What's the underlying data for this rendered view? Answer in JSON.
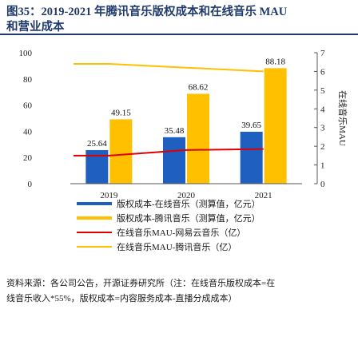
{
  "figure": {
    "title_line1": "图35：2019-2021 年腾讯音乐版权成本和在线音乐 MAU",
    "title_line2": "和营业成本"
  },
  "chart_data": {
    "type": "bar",
    "categories": [
      "2019",
      "2020",
      "2021"
    ],
    "series": [
      {
        "name": "版权成本-在线音乐（测算值，亿元）",
        "kind": "bar",
        "values": [
          25.64,
          35.48,
          39.65
        ],
        "color": "#1f5fbf"
      },
      {
        "name": "版权成本-腾讯音乐（测算值，亿元）",
        "kind": "bar",
        "values": [
          49.15,
          68.62,
          88.18
        ],
        "color": "#ffc000"
      },
      {
        "name": "在线音乐MAU-网易云音乐（亿）",
        "kind": "line",
        "axis": "right",
        "values": [
          1.5,
          1.8,
          1.85
        ],
        "color": "#e00000"
      },
      {
        "name": "在线音乐MAU-腾讯音乐（亿）",
        "kind": "line",
        "axis": "right",
        "values": [
          6.4,
          6.2,
          6.0
        ],
        "color": "#ffc000"
      }
    ],
    "ylim": [
      0,
      100
    ],
    "yticks": [
      "0",
      "20",
      "40",
      "60",
      "80",
      "100"
    ],
    "y2lim": [
      0,
      7
    ],
    "y2ticks": [
      "0",
      "1",
      "2",
      "3",
      "4",
      "5",
      "6",
      "7"
    ],
    "y2label": "在线音乐MAU",
    "data_labels": [
      "25.64",
      "35.48",
      "39.65",
      "49.15",
      "68.62",
      "88.18"
    ],
    "legend_position": "bottom",
    "grid": false
  },
  "source": {
    "line1": "资料来源：各公司公告，开源证券研究所（注：在线音乐版权成本=在",
    "line2": "线音乐收入*55%，版权成本=内容服务成本-直播分成成本）"
  }
}
